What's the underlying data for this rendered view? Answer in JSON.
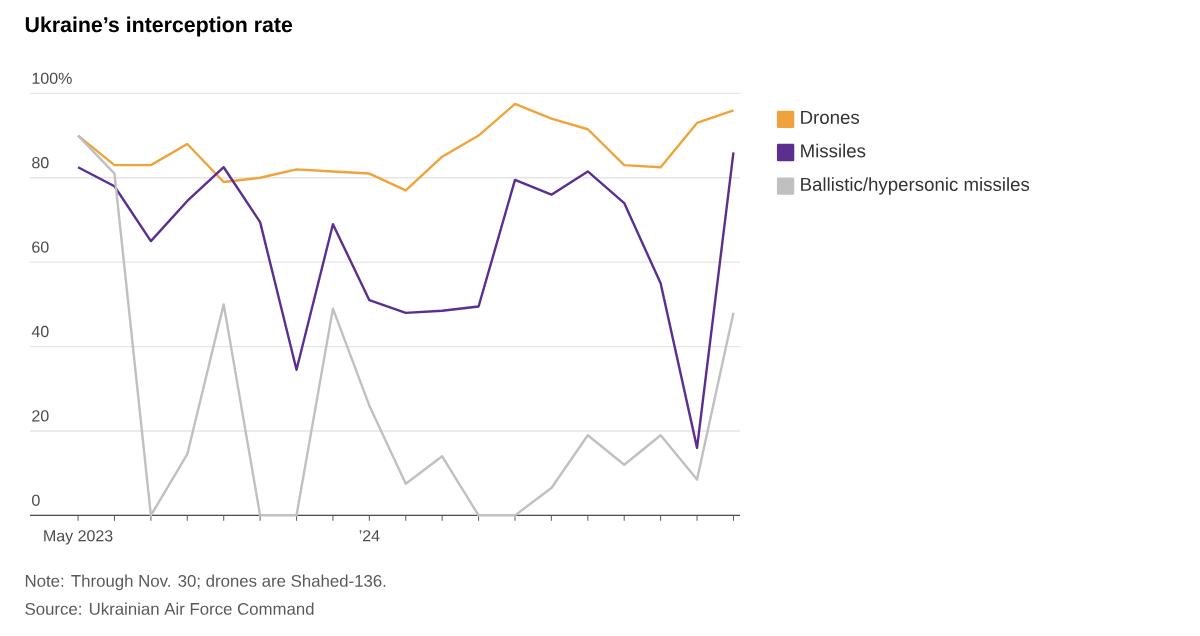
{
  "chart_data": {
    "type": "line",
    "title": "Ukraine’s interception rate",
    "categories": [
      "May 2023",
      null,
      null,
      null,
      null,
      null,
      null,
      null,
      "’24",
      null,
      null,
      null,
      null,
      null,
      null,
      null,
      null,
      null,
      null
    ],
    "series": [
      {
        "name": "Drones",
        "color": "#f0a33a",
        "values": [
          90,
          83,
          83,
          88,
          79,
          80,
          82,
          81.5,
          81,
          77,
          85,
          90,
          97.5,
          94,
          91.5,
          83,
          82.5,
          93,
          96
        ]
      },
      {
        "name": "Missiles",
        "color": "#5b2e8f",
        "values": [
          82.5,
          78,
          65,
          74.5,
          82.5,
          69.5,
          34.5,
          69,
          51,
          48,
          48.5,
          49.5,
          79.5,
          76,
          81.5,
          74,
          55,
          16,
          86
        ]
      },
      {
        "name": "Ballistic/hypersonic missiles",
        "color": "#c0c0c0",
        "values": [
          90,
          81,
          0,
          14.5,
          50,
          0,
          0,
          49,
          26,
          7.5,
          14,
          0,
          0,
          6.5,
          19,
          12,
          19,
          8.5,
          48
        ]
      }
    ],
    "ylim": [
      0,
      100
    ],
    "yticks": [
      0,
      20,
      40,
      60,
      80,
      {
        "value": 100,
        "label": "100%"
      }
    ],
    "grid": "y",
    "legend": "right",
    "annotations": [
      "Note: Through Nov. 30; drones are Shahed-136.",
      "Source: Ukrainian Air Force Command"
    ]
  }
}
